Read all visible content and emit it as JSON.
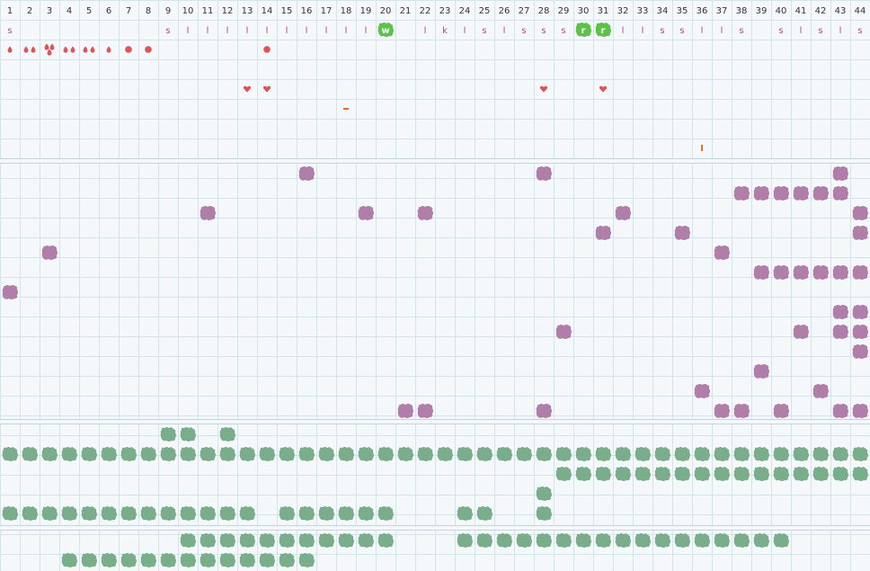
{
  "columns": [
    "1",
    "2",
    "3",
    "4",
    "5",
    "6",
    "7",
    "8",
    "9",
    "10",
    "11",
    "12",
    "13",
    "14",
    "15",
    "16",
    "17",
    "18",
    "19",
    "20",
    "21",
    "22",
    "23",
    "24",
    "25",
    "26",
    "27",
    "28",
    "29",
    "30",
    "31",
    "32",
    "33",
    "34",
    "35",
    "36",
    "37",
    "38",
    "39",
    "40",
    "41",
    "42",
    "43",
    "44"
  ],
  "colors": {
    "background": "#f4f8fa",
    "grid": "#d3e4ea",
    "section_divider": "#c4d4da",
    "header_text": "#333333",
    "letter_text": "#b04a6e",
    "letter_highlight": "#5dc24a",
    "pip": "#e0525a",
    "purple_tile": "#b07ea8",
    "green_tile": "#7aae8a"
  },
  "letter_track": [
    {
      "col": 1,
      "text": "s"
    },
    {
      "col": 9,
      "text": "s"
    },
    {
      "col": 10,
      "text": "l"
    },
    {
      "col": 11,
      "text": "l"
    },
    {
      "col": 12,
      "text": "l"
    },
    {
      "col": 13,
      "text": "l"
    },
    {
      "col": 14,
      "text": "l"
    },
    {
      "col": 15,
      "text": "l"
    },
    {
      "col": 16,
      "text": "l"
    },
    {
      "col": 17,
      "text": "l"
    },
    {
      "col": 18,
      "text": "l"
    },
    {
      "col": 19,
      "text": "l"
    },
    {
      "col": 20,
      "text": "w",
      "highlight": true
    },
    {
      "col": 22,
      "text": "l"
    },
    {
      "col": 23,
      "text": "k"
    },
    {
      "col": 24,
      "text": "l"
    },
    {
      "col": 25,
      "text": "s"
    },
    {
      "col": 26,
      "text": "l"
    },
    {
      "col": 27,
      "text": "s"
    },
    {
      "col": 28,
      "text": "s"
    },
    {
      "col": 29,
      "text": "s"
    },
    {
      "col": 30,
      "text": "r",
      "highlight": true
    },
    {
      "col": 31,
      "text": "r",
      "highlight": true
    },
    {
      "col": 32,
      "text": "l"
    },
    {
      "col": 33,
      "text": "l"
    },
    {
      "col": 34,
      "text": "s"
    },
    {
      "col": 35,
      "text": "s"
    },
    {
      "col": 36,
      "text": "l"
    },
    {
      "col": 37,
      "text": "l"
    },
    {
      "col": 38,
      "text": "s"
    },
    {
      "col": 40,
      "text": "s"
    },
    {
      "col": 41,
      "text": "l"
    },
    {
      "col": 42,
      "text": "s"
    },
    {
      "col": 43,
      "text": "l"
    },
    {
      "col": 44,
      "text": "s"
    }
  ],
  "markers": [
    {
      "col": 1,
      "row": 2,
      "icon": "drop-icon",
      "count": 1
    },
    {
      "col": 2,
      "row": 2,
      "icon": "drop-icon",
      "count": 2
    },
    {
      "col": 3,
      "row": 2,
      "icon": "drop-icon",
      "count": 3
    },
    {
      "col": 4,
      "row": 2,
      "icon": "drop-icon",
      "count": 2
    },
    {
      "col": 5,
      "row": 2,
      "icon": "drop-icon",
      "count": 2
    },
    {
      "col": 6,
      "row": 2,
      "icon": "drop-icon",
      "count": 1
    },
    {
      "col": 7,
      "row": 2,
      "icon": "dot-icon",
      "count": 1
    },
    {
      "col": 8,
      "row": 2,
      "icon": "dot-icon",
      "count": 1
    },
    {
      "col": 14,
      "row": 2,
      "icon": "dot-icon",
      "count": 1
    },
    {
      "col": 13,
      "row": 4,
      "icon": "heart-icon",
      "count": 1
    },
    {
      "col": 14,
      "row": 4,
      "icon": "heart-icon",
      "count": 1
    },
    {
      "col": 28,
      "row": 4,
      "icon": "heart-icon",
      "count": 1
    },
    {
      "col": 31,
      "row": 4,
      "icon": "heart-icon",
      "count": 1
    },
    {
      "col": 18,
      "row": 5,
      "icon": "dash-icon",
      "count": 1
    },
    {
      "col": 36,
      "row": 7,
      "icon": "tick-icon",
      "count": 1
    }
  ],
  "purple_tiles": [
    [
      16,
      1
    ],
    [
      28,
      1
    ],
    [
      43,
      1
    ],
    [
      38,
      2
    ],
    [
      39,
      2
    ],
    [
      40,
      2
    ],
    [
      41,
      2
    ],
    [
      42,
      2
    ],
    [
      43,
      2
    ],
    [
      11,
      3
    ],
    [
      19,
      3
    ],
    [
      22,
      3
    ],
    [
      32,
      3
    ],
    [
      44,
      3
    ],
    [
      31,
      4
    ],
    [
      35,
      4
    ],
    [
      44,
      4
    ],
    [
      3,
      5
    ],
    [
      37,
      5
    ],
    [
      39,
      6
    ],
    [
      40,
      6
    ],
    [
      41,
      6
    ],
    [
      42,
      6
    ],
    [
      43,
      6
    ],
    [
      44,
      6
    ],
    [
      1,
      7
    ],
    [
      43,
      8
    ],
    [
      44,
      8
    ],
    [
      29,
      9
    ],
    [
      41,
      9
    ],
    [
      43,
      9
    ],
    [
      44,
      9
    ],
    [
      44,
      10
    ],
    [
      39,
      11
    ],
    [
      36,
      12
    ],
    [
      42,
      12
    ],
    [
      21,
      13
    ],
    [
      22,
      13
    ],
    [
      28,
      13
    ],
    [
      37,
      13
    ],
    [
      38,
      13
    ],
    [
      40,
      13
    ],
    [
      43,
      13
    ],
    [
      44,
      13
    ]
  ],
  "green_rows_section3": [
    {
      "row": 1,
      "cols": [
        9,
        10,
        12
      ]
    },
    {
      "row": 2,
      "range": [
        1,
        44
      ]
    },
    {
      "row": 3,
      "range": [
        29,
        44
      ]
    },
    {
      "row": 4,
      "cols": [
        28
      ]
    },
    {
      "row": 5,
      "cols": [
        1,
        2,
        3,
        4,
        5,
        6,
        7,
        8,
        9,
        10,
        11,
        12,
        13,
        15,
        16,
        17,
        18,
        19,
        20,
        24,
        25,
        28
      ]
    }
  ],
  "green_rows_section4": [
    {
      "row": 1,
      "cols": [
        10,
        11,
        12,
        13,
        14,
        15,
        16,
        17,
        18,
        19,
        20,
        24,
        25,
        26,
        27,
        28,
        29,
        30,
        31,
        32,
        33,
        34,
        35,
        36,
        37,
        38,
        39,
        40
      ]
    },
    {
      "row": 2,
      "cols": [
        4,
        5,
        6,
        7,
        8,
        9,
        10,
        11,
        12,
        13,
        14,
        15,
        16
      ]
    }
  ]
}
